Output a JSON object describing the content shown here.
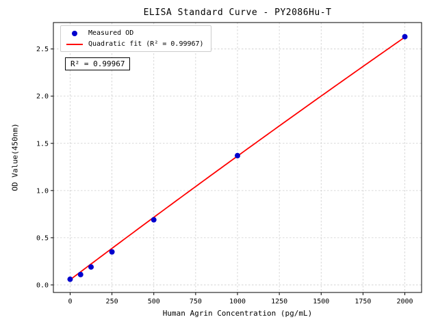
{
  "chart_data": {
    "type": "scatter",
    "title": "ELISA Standard Curve - PY2086Hu-T",
    "xlabel": "Human Agrin Concentration (pg/mL)",
    "ylabel": "OD Value(450nm)",
    "xlim": [
      -100,
      2100
    ],
    "ylim": [
      -0.08,
      2.78
    ],
    "xticks": [
      0,
      250,
      500,
      750,
      1000,
      1250,
      1500,
      1750,
      2000
    ],
    "yticks": [
      0.0,
      0.5,
      1.0,
      1.5,
      2.0,
      2.5
    ],
    "grid": true,
    "legend_position": "upper-left",
    "annotation": "R² = 0.99967",
    "r_squared": "0.99967",
    "series": [
      {
        "name": "Measured OD",
        "type": "scatter",
        "color": "#0000cd",
        "x": [
          0,
          62.5,
          125,
          250,
          500,
          1000,
          2000
        ],
        "y": [
          0.06,
          0.11,
          0.19,
          0.35,
          0.69,
          1.37,
          2.63
        ]
      },
      {
        "name": "Quadratic fit (R² = 0.99967)",
        "type": "line",
        "color": "#ff0000",
        "fit": {
          "a": 0.055,
          "b": 0.001335,
          "c": -2.5e-08
        },
        "x_range": [
          0,
          2000
        ]
      }
    ],
    "colors": {
      "point": "#0000cd",
      "line": "#ff0000",
      "grid": "#cccccc",
      "axis": "#000000",
      "background": "#ffffff"
    }
  }
}
